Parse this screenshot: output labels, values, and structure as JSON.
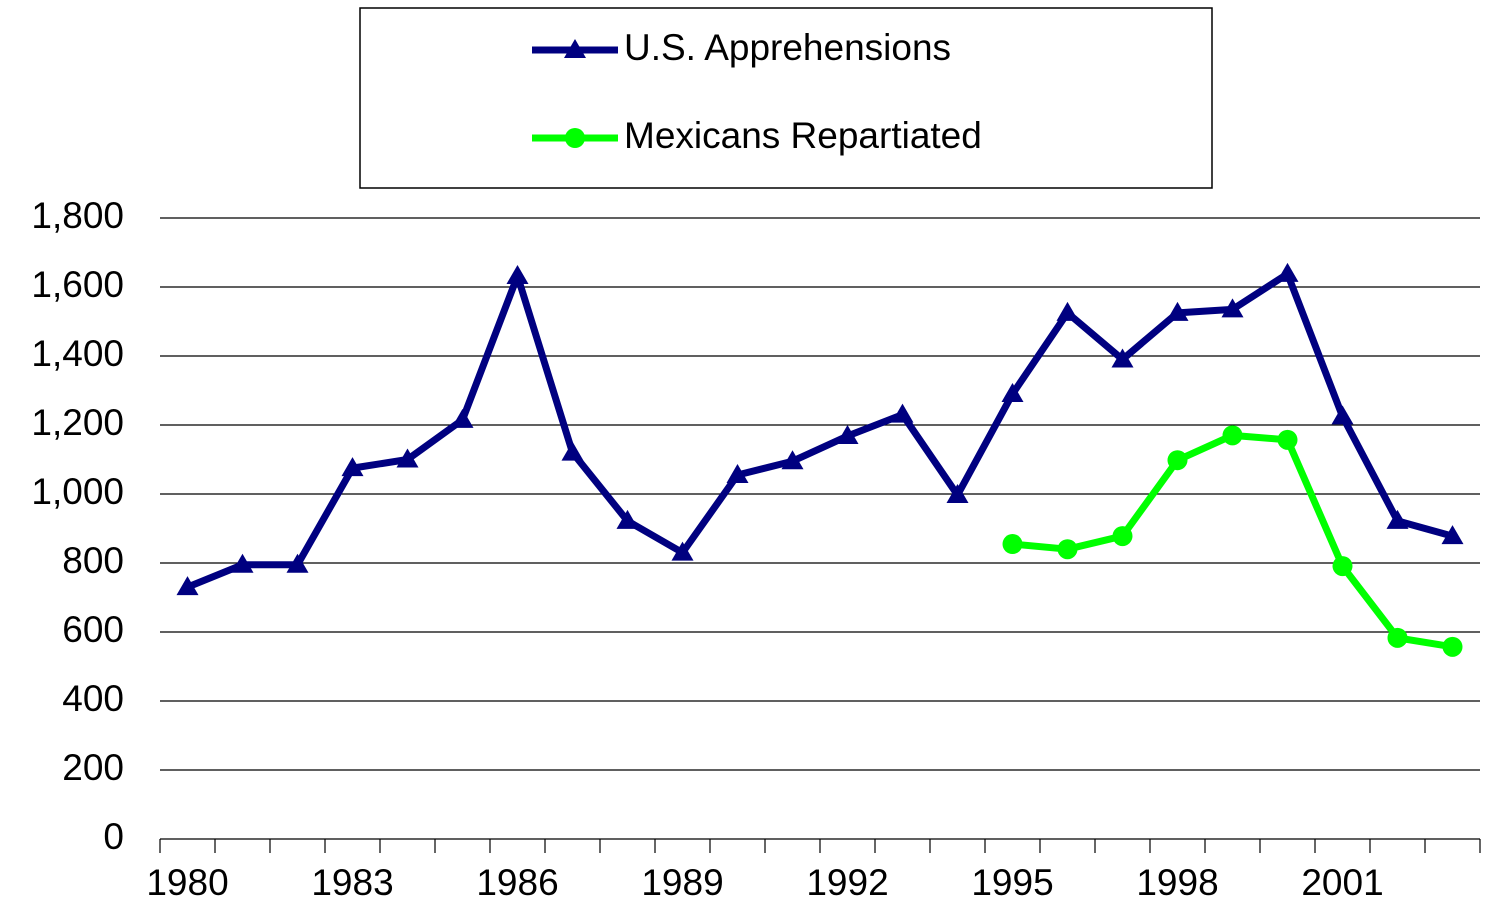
{
  "chart_data": {
    "type": "line",
    "categories": [
      "1980",
      null,
      null,
      "1983",
      null,
      null,
      "1986",
      null,
      null,
      "1989",
      null,
      null,
      "1992",
      null,
      null,
      "1995",
      null,
      null,
      "1998",
      null,
      null,
      "2001",
      null,
      null
    ],
    "series": [
      {
        "name": "U.S. Apprehensions",
        "color": "#000080",
        "marker": "triangle",
        "values": [
          730,
          795,
          795,
          1075,
          1100,
          1215,
          1632,
          1120,
          922,
          830,
          1055,
          1095,
          1168,
          1230,
          997,
          1290,
          1525,
          1390,
          1525,
          1535,
          1638,
          1225,
          922,
          878
        ]
      },
      {
        "name": "Mexicans Repartiated",
        "color": "#00ff00",
        "marker": "circle",
        "values": [
          null,
          null,
          null,
          null,
          null,
          null,
          null,
          null,
          null,
          null,
          null,
          null,
          null,
          null,
          null,
          855,
          840,
          878,
          1098,
          1170,
          1157,
          791,
          583,
          557
        ]
      }
    ],
    "ylim": [
      0,
      1800
    ],
    "yticks": [
      0,
      200,
      400,
      600,
      800,
      {
        "value": 1000,
        "label": "1,000"
      },
      {
        "value": 1200,
        "label": "1,200"
      },
      {
        "value": 1400,
        "label": "1,400"
      },
      {
        "value": 1600,
        "label": "1,600"
      },
      {
        "value": 1800,
        "label": "1,800"
      }
    ],
    "grid": true,
    "legend": "top"
  }
}
